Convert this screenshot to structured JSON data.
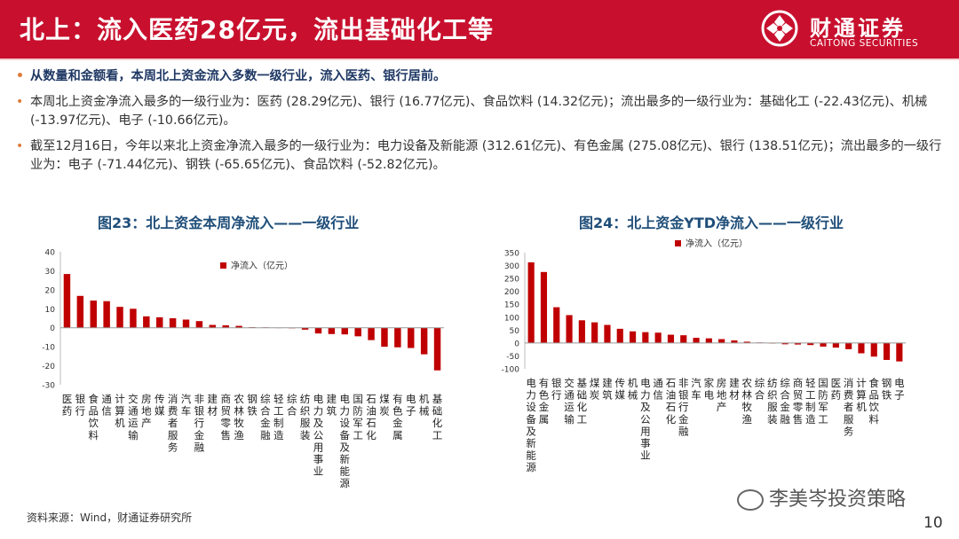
{
  "header": {
    "title": "北上：流入医药28亿元，流出基础化工等",
    "logo_cn": "财通证券",
    "logo_en": "CAITONG SECURITIES"
  },
  "bullets": [
    "从数量和金额看，本周北上资金流入多数一级行业，流入医药、银行居前。",
    "本周北上资金净流入最多的一级行业为：医药 (28.29亿元)、银行 (16.77亿元)、食品饮料 (14.32亿元)；流出最多的一级行业为：基础化工 (-22.43亿元)、机械 (-13.97亿元)、电子 (-10.66亿元)。",
    "截至12月16日，今年以来北上资金净流入最多的一级行业为：电力设备及新能源 (312.61亿元)、有色金属 (275.08亿元)、银行 (138.51亿元)；流出最多的一级行业为：电子 (-71.44亿元)、钢铁 (-65.65亿元)、食品饮料 (-52.82亿元)。"
  ],
  "footer": {
    "source": "资料来源：Wind，财通证券研究所",
    "watermark": "李美岑投资策略",
    "page": "10"
  },
  "colors": {
    "brand": "#c8102e",
    "bar": "#c00000",
    "title_blue": "#1f4e79"
  },
  "chart_data": [
    {
      "type": "bar",
      "title": "图23：北上资金本周净流入——一级行业",
      "series": [
        {
          "name": "净流入（亿元）"
        }
      ],
      "ylim": [
        -30,
        40
      ],
      "yticks": [
        -30,
        -20,
        -10,
        0,
        10,
        20,
        30,
        40
      ],
      "categories": [
        "医药",
        "银行",
        "食品饮料",
        "通信",
        "计算机",
        "交通运输",
        "房地产",
        "传媒",
        "消费者服务",
        "汽车",
        "非银行金融",
        "建材",
        "商贸零售",
        "农林牧渔",
        "钢铁",
        "综合金融",
        "轻工制造",
        "综合",
        "纺织服装",
        "电力及公用事业",
        "建筑",
        "电力设备及新能源",
        "国防军工",
        "石油石化",
        "煤炭",
        "有色金属",
        "电子",
        "机械",
        "基础化工"
      ],
      "values": [
        28.29,
        16.77,
        14.32,
        14.0,
        11.0,
        10.0,
        6.0,
        5.5,
        5.0,
        4.3,
        3.5,
        1.5,
        1.3,
        1.0,
        0.3,
        0.2,
        0.1,
        -0.2,
        -1.0,
        -3.0,
        -3.3,
        -3.5,
        -4.5,
        -6.5,
        -10.0,
        -10.3,
        -10.66,
        -13.97,
        -22.43
      ]
    },
    {
      "type": "bar",
      "title": "图24：北上资金YTD净流入——一级行业",
      "series": [
        {
          "name": "净流入（亿元）"
        }
      ],
      "ylim": [
        -100,
        350
      ],
      "yticks": [
        -100,
        -50,
        0,
        50,
        100,
        150,
        200,
        250,
        300,
        350
      ],
      "categories": [
        "电力设备及新能源",
        "有色金属",
        "银行",
        "交通运输",
        "基础化工",
        "煤炭",
        "建筑",
        "传媒",
        "机械",
        "电力及公用事业",
        "通信",
        "石油石化",
        "非银行金融",
        "汽车",
        "家电",
        "房地产",
        "建材",
        "农林牧渔",
        "综合",
        "纺织服装",
        "综合金融",
        "商贸零售",
        "轻工制造",
        "国防军工",
        "医药",
        "消费者服务",
        "计算机",
        "食品饮料",
        "钢铁",
        "电子"
      ],
      "values": [
        312.61,
        275.08,
        138.51,
        108,
        88,
        80,
        70,
        55,
        45,
        42,
        40,
        32,
        30,
        20,
        18,
        15,
        10,
        5,
        2,
        -2,
        -5,
        -6,
        -8,
        -14,
        -18,
        -24,
        -40,
        -52.82,
        -65.65,
        -71.44
      ]
    }
  ]
}
